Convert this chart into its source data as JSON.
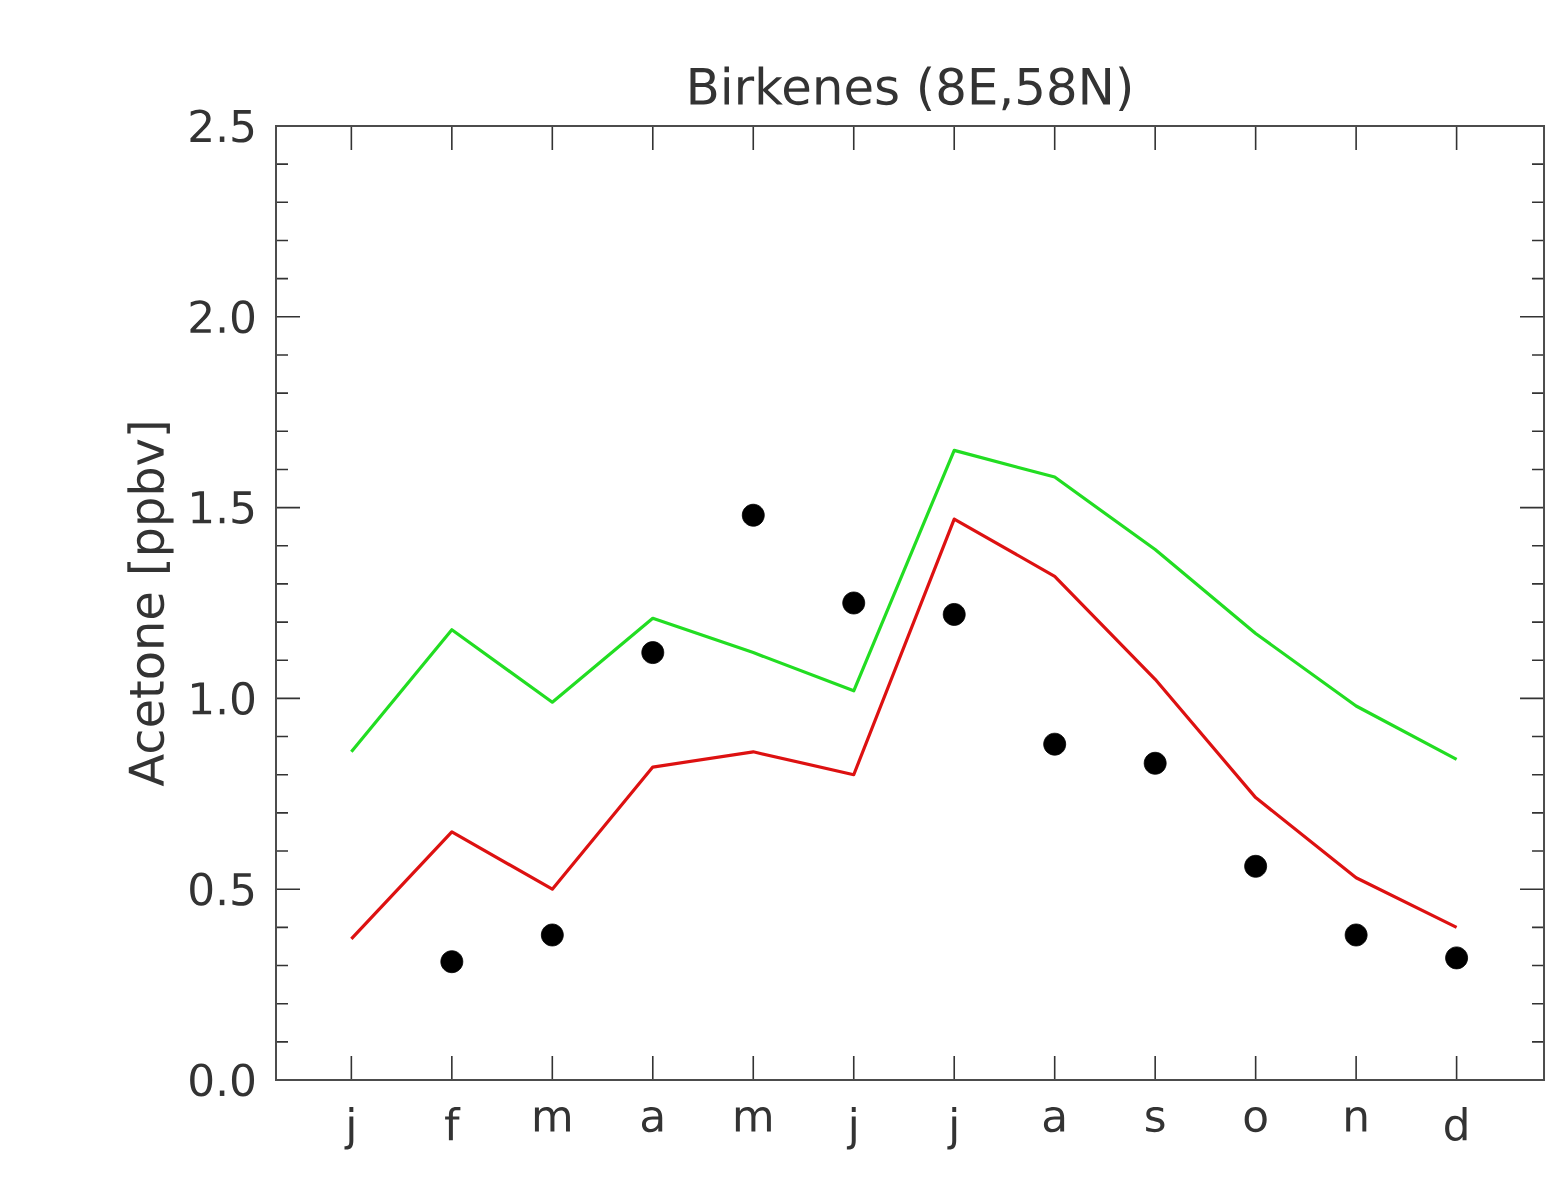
{
  "chart_data": {
    "type": "line",
    "title": "Birkenes (8E,58N)",
    "ylabel": "Acetone [ppbv]",
    "categories": [
      "j",
      "f",
      "m",
      "a",
      "m",
      "j",
      "j",
      "a",
      "s",
      "o",
      "n",
      "d"
    ],
    "ylim": [
      0,
      2.5
    ],
    "yticks": [
      {
        "value": 0,
        "label": "0.0"
      },
      {
        "value": 0.5,
        "label": "0.5"
      },
      {
        "value": 1,
        "label": "1.0"
      },
      {
        "value": 1.5,
        "label": "1.5"
      },
      {
        "value": 2,
        "label": "2.0"
      },
      {
        "value": 2.5,
        "label": "2.5"
      }
    ],
    "series": [
      {
        "type": "line",
        "color": "#22dd22",
        "marker": "none",
        "values": [
          0.86,
          1.18,
          0.99,
          1.21,
          1.12,
          1.02,
          1.65,
          1.58,
          1.39,
          1.17,
          0.98,
          0.84
        ]
      },
      {
        "type": "line",
        "color": "#dd1111",
        "marker": "none",
        "values": [
          0.37,
          0.65,
          0.5,
          0.82,
          0.86,
          0.8,
          1.47,
          1.32,
          1.05,
          0.74,
          0.53,
          0.4
        ]
      },
      {
        "type": "scatter",
        "color": "#000000",
        "marker": "circle",
        "values": [
          null,
          0.31,
          0.38,
          1.12,
          1.48,
          1.25,
          1.22,
          0.88,
          0.83,
          0.56,
          0.38,
          0.32
        ]
      }
    ]
  }
}
